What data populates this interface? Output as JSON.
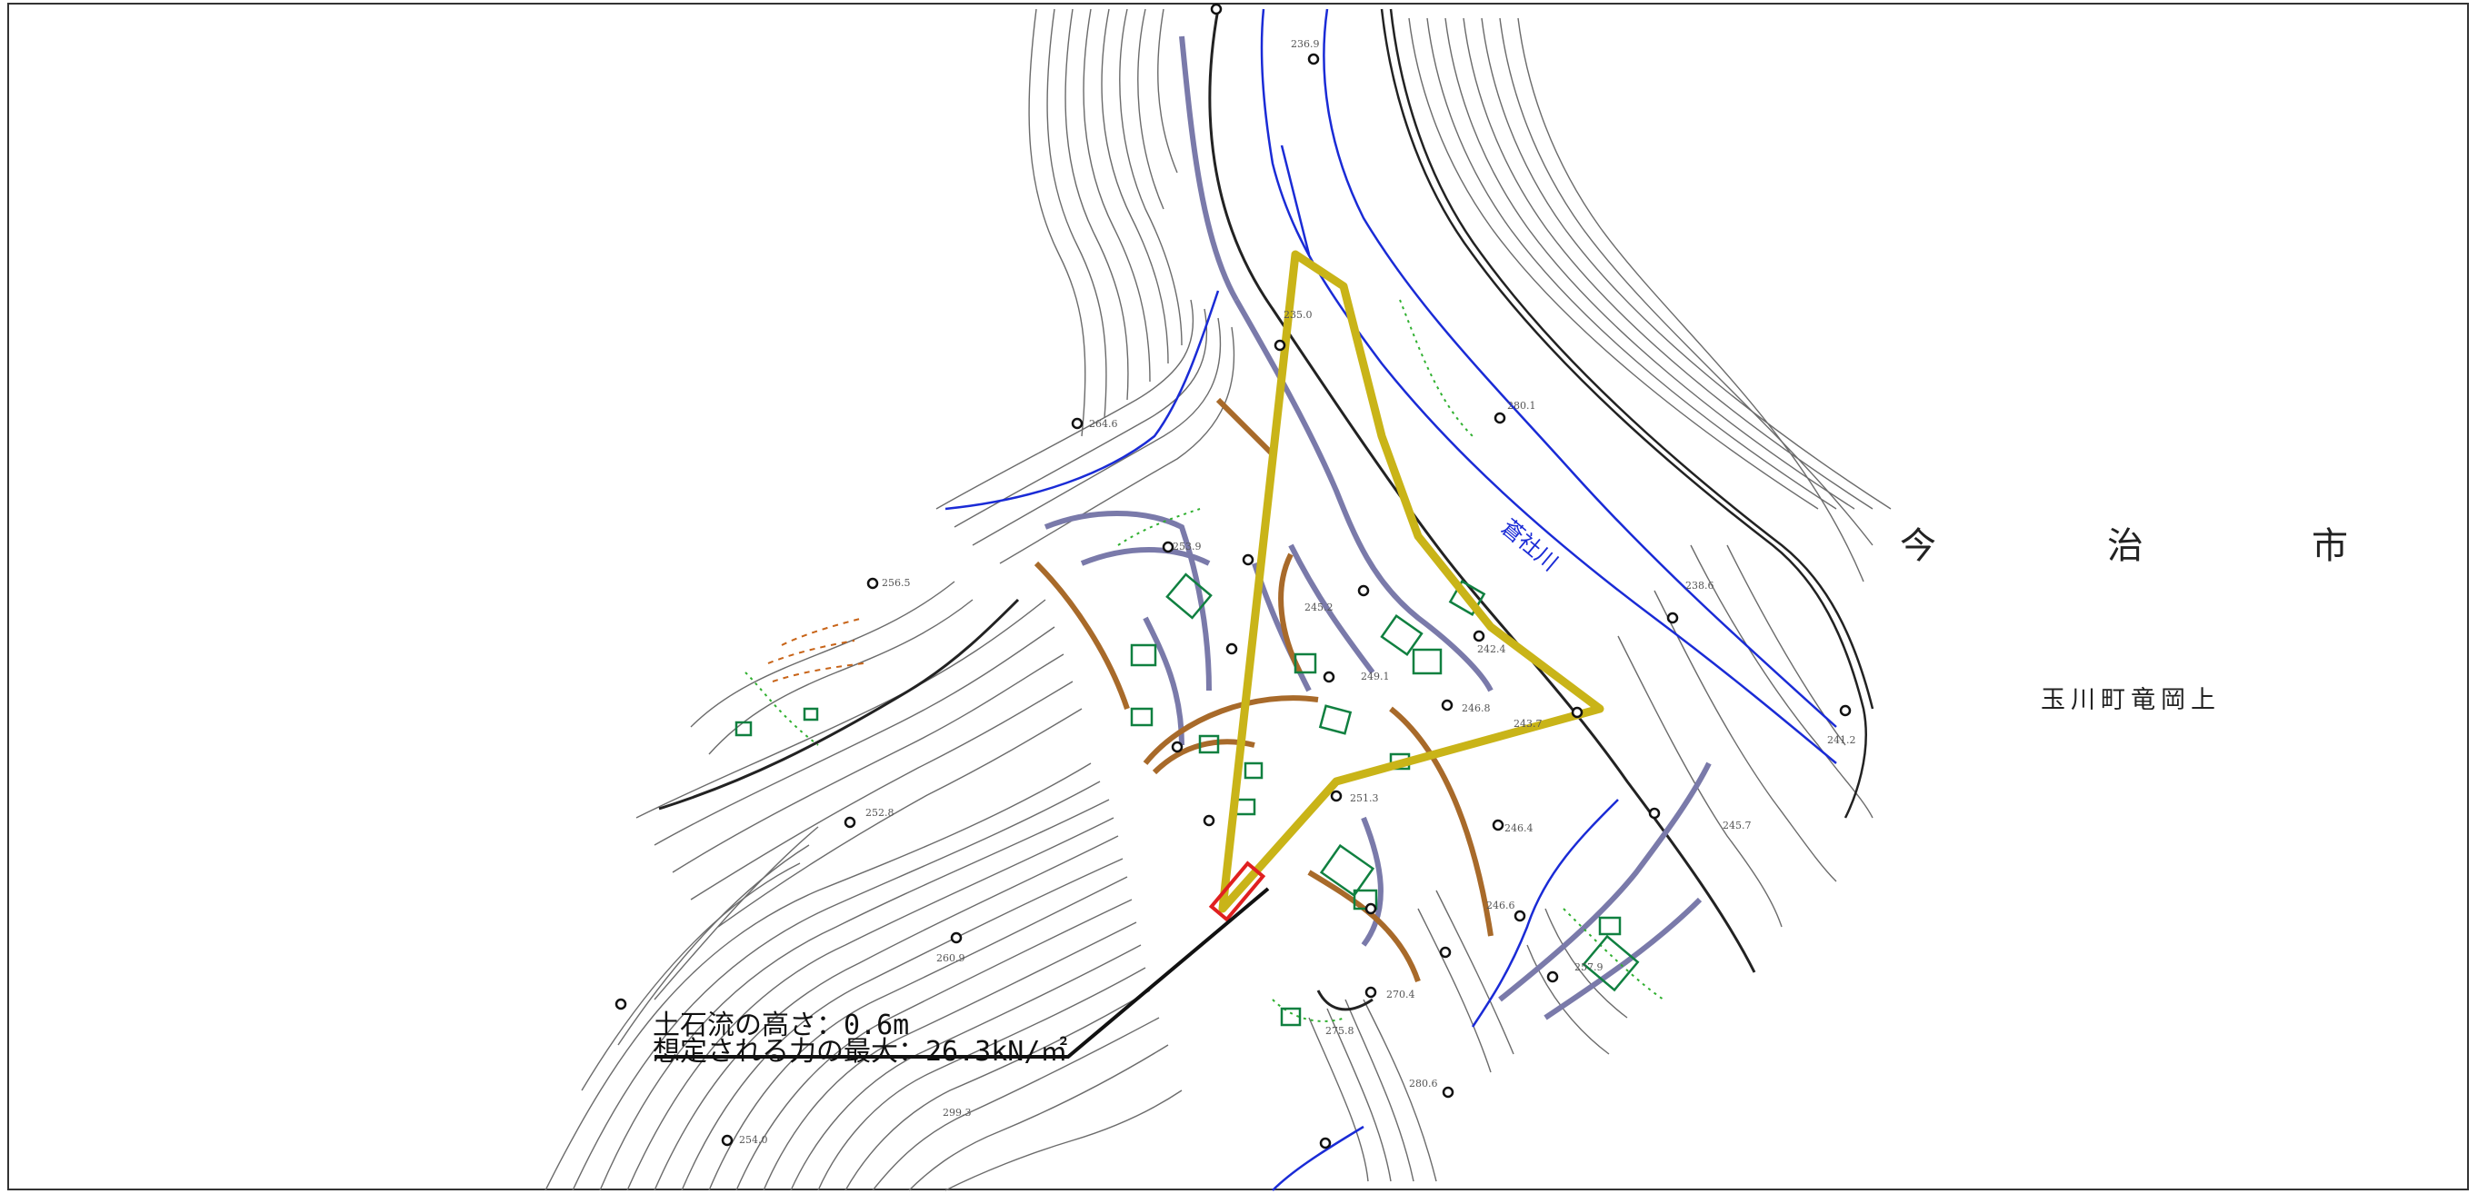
{
  "map": {
    "city": [
      "今",
      "治",
      "市"
    ],
    "town": "玉川町竜岡上",
    "river_label": "蒼社川",
    "annotations": {
      "flow_height": "土石流の高さ：0.6m",
      "max_force": "想定される力の最大：26.3kN/㎡"
    },
    "colors": {
      "hazard_zone": "#c9b418",
      "marked_building": "#e02020",
      "river": "#1a2bd6",
      "buildings": "#108040",
      "terraces": "#a86a2a",
      "roads": "#7a7aaa",
      "contours": "#555555"
    },
    "elevation_labels": [
      "236.9",
      "235.0",
      "253.9",
      "245.2",
      "249.1",
      "246.8",
      "243.7",
      "242.4",
      "246.4",
      "246.6",
      "252.8",
      "251.3",
      "260.9",
      "275.8",
      "270.4",
      "280.6",
      "299.3",
      "264.6",
      "256.5",
      "257.9",
      "280.1",
      "238.6",
      "245.7",
      "241.2",
      "254.0"
    ]
  }
}
